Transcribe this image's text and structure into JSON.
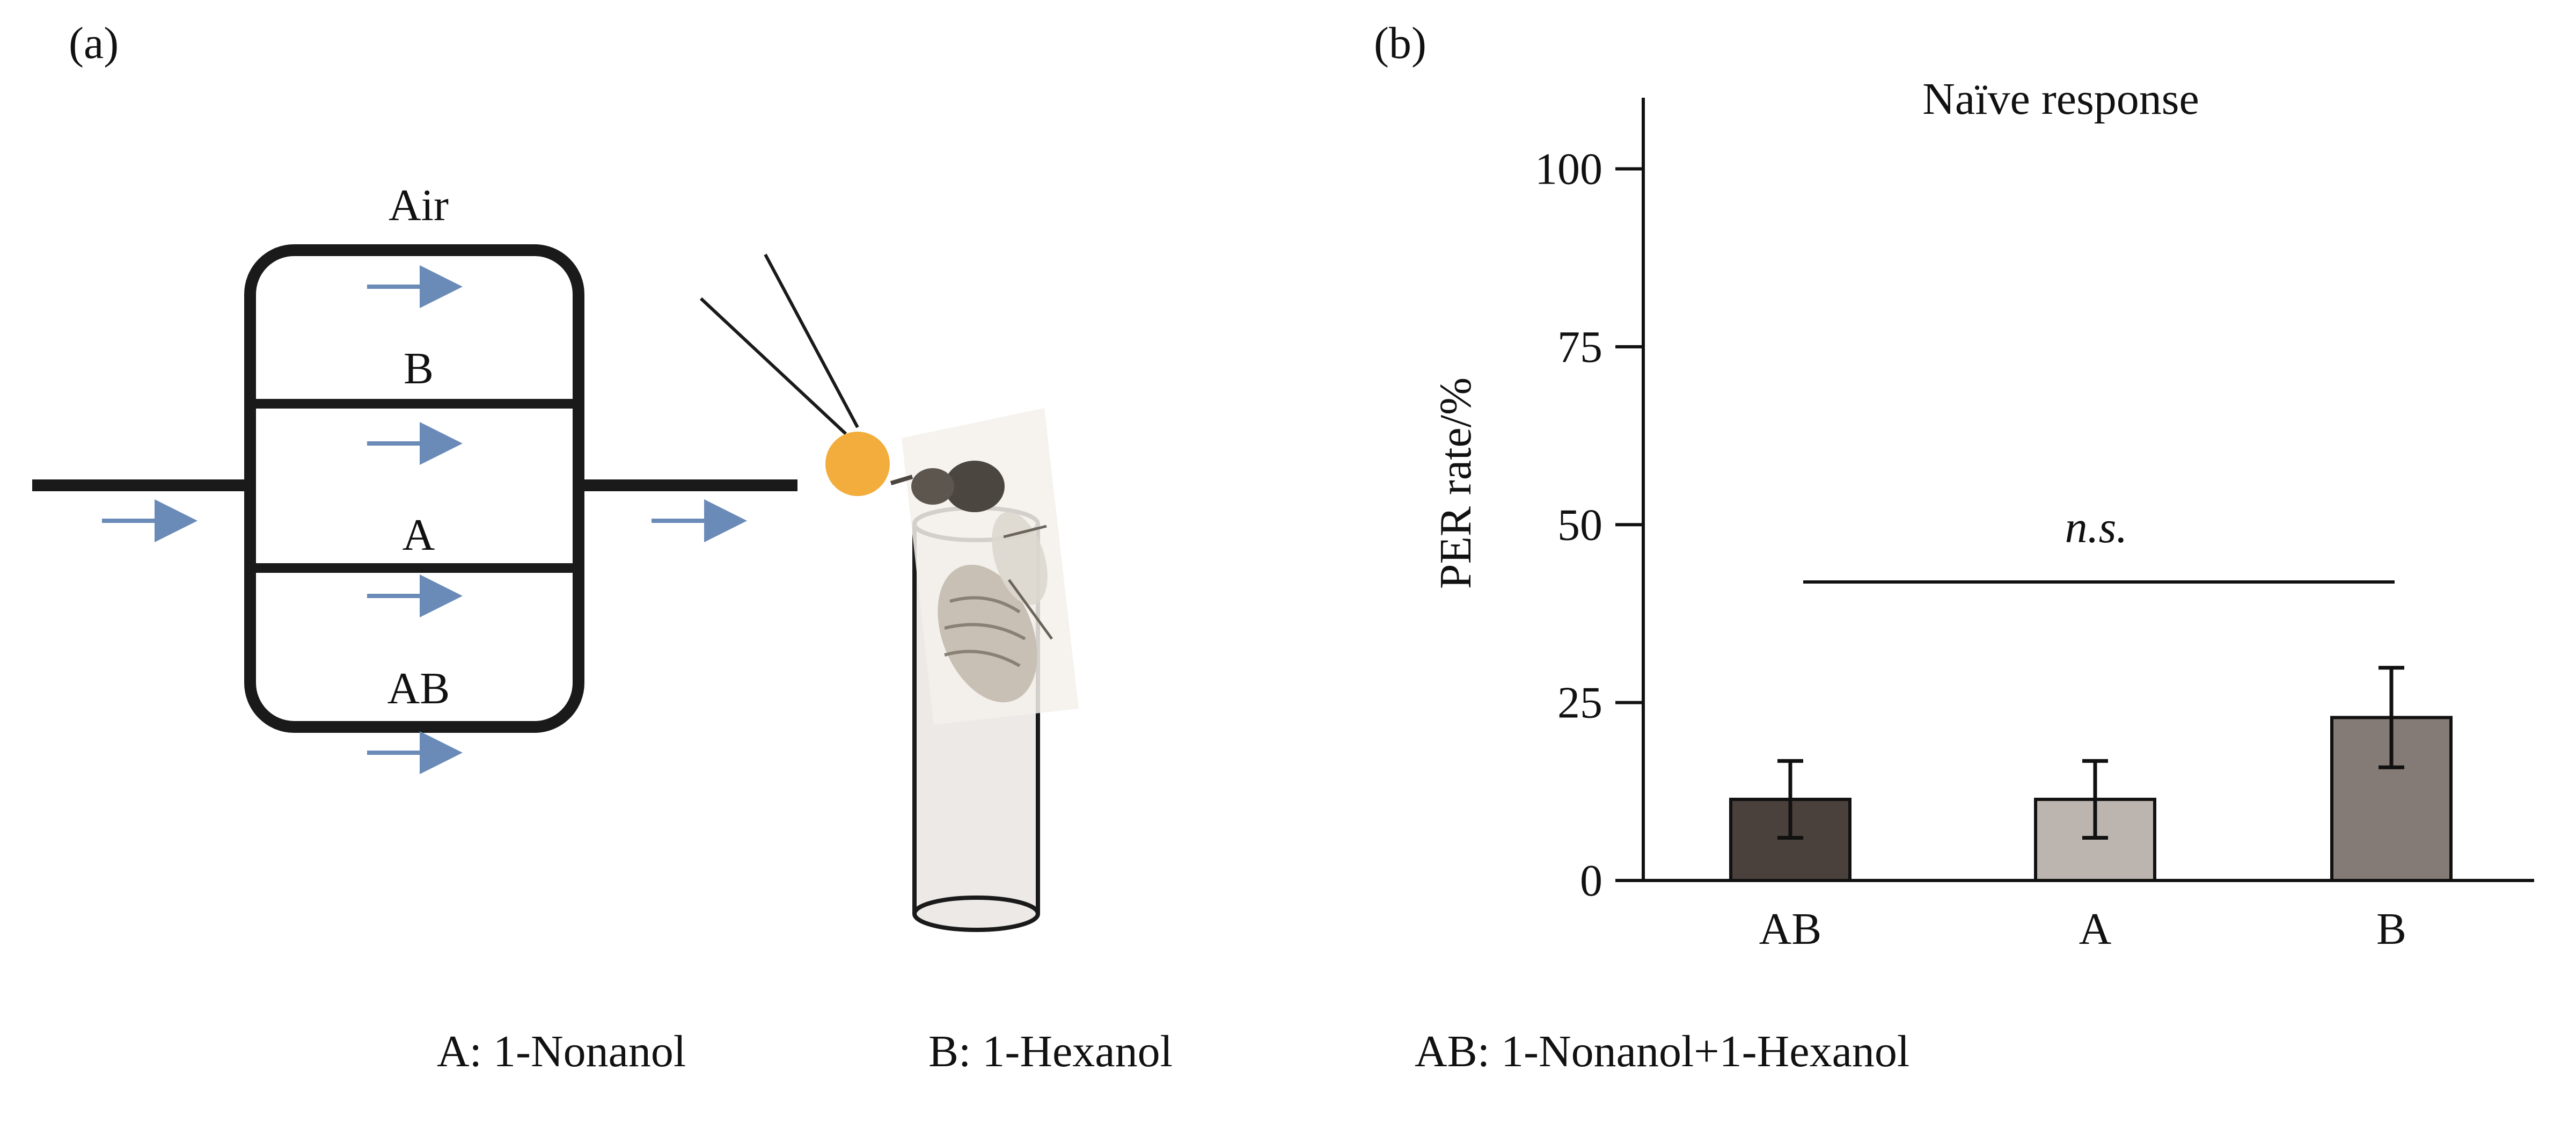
{
  "panels": {
    "a": "(a)",
    "b": "(b)"
  },
  "diagram": {
    "labels": {
      "air": "Air",
      "b": "B",
      "a": "A",
      "ab": "AB"
    },
    "colors": {
      "tube": "#1a1a1a",
      "arrow": "#6a8ab8",
      "droplet": "#f2ad3c",
      "cylinder_fill": "#ece9e6"
    }
  },
  "chart_data": {
    "type": "bar",
    "title": "Naïve response",
    "xlabel": "",
    "ylabel": "PER rate/%",
    "ylim": [
      0,
      110
    ],
    "yticks": [
      0,
      25,
      50,
      75,
      100
    ],
    "categories": [
      "AB",
      "A",
      "B"
    ],
    "values": [
      11.4,
      11.4,
      22.9
    ],
    "errors": [
      5.4,
      5.4,
      7.0
    ],
    "colors": [
      "#4a403c",
      "#bcb4ae",
      "#847b76"
    ],
    "annotation": "n.s.",
    "grid": false
  },
  "legend": {
    "items": [
      "A: 1-Nonanol",
      "B: 1-Hexanol",
      "AB: 1-Nonanol+1-Hexanol"
    ]
  }
}
